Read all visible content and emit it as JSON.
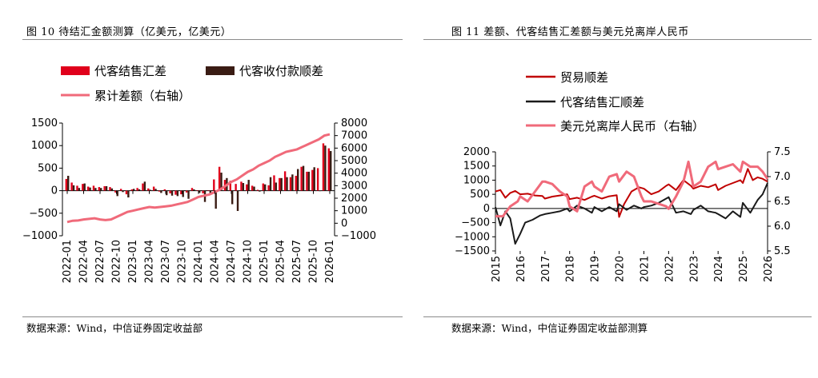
{
  "left": {
    "title": "图 10 待结汇金额测算（亿美元，亿美元）",
    "source": "数据来源：Wind，中信证券固定收益部"
  },
  "right": {
    "title": "图 11 差额、代客结售汇差额与美元兑离岸人民币",
    "source": "数据来源：Wind，中信证券固定收益部测算"
  },
  "chart_data": [
    {
      "type": "bar",
      "title": "",
      "x_labels": [
        "2022-01",
        "2022-04",
        "2022-07",
        "2022-10",
        "2023-01",
        "2023-04",
        "2023-07",
        "2023-10",
        "2024-01",
        "2024-04",
        "2024-07",
        "2024-10",
        "2025-01",
        "2025-04",
        "2025-07",
        "2025-10",
        "2026-01"
      ],
      "x": [
        "2022-01",
        "2022-02",
        "2022-03",
        "2022-04",
        "2022-05",
        "2022-06",
        "2022-07",
        "2022-08",
        "2022-09",
        "2022-10",
        "2022-11",
        "2022-12",
        "2023-01",
        "2023-02",
        "2023-03",
        "2023-04",
        "2023-05",
        "2023-06",
        "2023-07",
        "2023-08",
        "2023-09",
        "2023-10",
        "2023-11",
        "2023-12",
        "2024-01",
        "2024-02",
        "2024-03",
        "2024-04",
        "2024-05",
        "2024-06",
        "2024-07",
        "2024-08",
        "2024-09",
        "2024-10",
        "2024-11",
        "2024-12",
        "2025-01",
        "2025-02",
        "2025-03",
        "2025-04",
        "2025-05",
        "2025-06",
        "2025-07",
        "2025-08",
        "2025-09",
        "2025-10",
        "2025-11",
        "2025-12",
        "2026-01"
      ],
      "series": [
        {
          "name": "代客结售汇差",
          "axis": "left",
          "kind": "bar",
          "color": "#e0001b",
          "values": [
            260,
            180,
            110,
            150,
            90,
            110,
            80,
            100,
            80,
            -40,
            40,
            -80,
            30,
            60,
            160,
            50,
            90,
            -20,
            30,
            -60,
            -90,
            -80,
            -40,
            60,
            10,
            -60,
            10,
            250,
            530,
            240,
            220,
            150,
            200,
            140,
            110,
            20,
            160,
            120,
            340,
            280,
            430,
            300,
            330,
            530,
            420,
            460,
            500,
            1050,
            940
          ]
        },
        {
          "name": "代客收付款顺差",
          "axis": "left",
          "kind": "bar",
          "color": "#3a1c14",
          "values": [
            330,
            120,
            60,
            160,
            70,
            60,
            60,
            100,
            50,
            -120,
            -30,
            -150,
            40,
            30,
            200,
            20,
            40,
            -50,
            -100,
            -110,
            -120,
            -140,
            -180,
            30,
            -50,
            -250,
            -60,
            -400,
            400,
            280,
            -300,
            -450,
            170,
            240,
            90,
            -20,
            140,
            300,
            180,
            280,
            300,
            360,
            480,
            550,
            420,
            520,
            -10,
            1000,
            880
          ]
        },
        {
          "name": "累计差额（右轴）",
          "axis": "right",
          "kind": "line",
          "color": "#f06a7a",
          "values": [
            100,
            200,
            220,
            300,
            350,
            400,
            300,
            250,
            300,
            500,
            700,
            900,
            1000,
            1100,
            1200,
            1300,
            1250,
            1300,
            1350,
            1400,
            1500,
            1600,
            1700,
            1900,
            2100,
            2200,
            2300,
            2500,
            2700,
            3000,
            3300,
            3500,
            3800,
            4100,
            4300,
            4600,
            4800,
            5000,
            5300,
            5500,
            5700,
            5800,
            5900,
            6100,
            6300,
            6500,
            6700,
            7000,
            7100
          ]
        }
      ],
      "y_left_ticks": [
        "1500",
        "1000",
        "500",
        "0",
        "−500",
        "−1000"
      ],
      "y_right_ticks": [
        "8000",
        "7000",
        "6000",
        "5000",
        "4000",
        "3000",
        "2000",
        "1000",
        "0",
        "−1000"
      ],
      "y_left_range": [
        -1000,
        1500
      ],
      "y_right_range": [
        -1000,
        8000
      ],
      "legend": {
        "position": "top",
        "entries": [
          "代客结售汇差",
          "代客收付款顺差",
          "累计差额（右轴）"
        ]
      }
    },
    {
      "type": "line",
      "title": "",
      "x_labels": [
        "2015",
        "2016",
        "2017",
        "2018",
        "2019",
        "2020",
        "2021",
        "2022",
        "2023",
        "2024",
        "2025",
        "2026"
      ],
      "x_range": [
        2015,
        2026
      ],
      "series": [
        {
          "name": "贸易顺差",
          "axis": "left",
          "color": "#c00000",
          "points": [
            [
              2015,
              600
            ],
            [
              2015.2,
              650
            ],
            [
              2015.4,
              380
            ],
            [
              2015.6,
              550
            ],
            [
              2015.8,
              620
            ],
            [
              2016,
              500
            ],
            [
              2016.3,
              520
            ],
            [
              2016.6,
              460
            ],
            [
              2016.9,
              440
            ],
            [
              2017,
              350
            ],
            [
              2017.3,
              420
            ],
            [
              2017.6,
              460
            ],
            [
              2017.9,
              500
            ],
            [
              2018,
              330
            ],
            [
              2018.3,
              380
            ],
            [
              2018.6,
              300
            ],
            [
              2018.9,
              420
            ],
            [
              2019,
              450
            ],
            [
              2019.3,
              350
            ],
            [
              2019.6,
              430
            ],
            [
              2019.9,
              470
            ],
            [
              2020,
              -300
            ],
            [
              2020.2,
              150
            ],
            [
              2020.5,
              600
            ],
            [
              2020.8,
              750
            ],
            [
              2021,
              700
            ],
            [
              2021.3,
              500
            ],
            [
              2021.6,
              600
            ],
            [
              2021.9,
              800
            ],
            [
              2022,
              850
            ],
            [
              2022.3,
              650
            ],
            [
              2022.6,
              1000
            ],
            [
              2022.9,
              800
            ],
            [
              2023,
              700
            ],
            [
              2023.3,
              800
            ],
            [
              2023.6,
              750
            ],
            [
              2023.9,
              850
            ],
            [
              2024,
              650
            ],
            [
              2024.3,
              800
            ],
            [
              2024.6,
              900
            ],
            [
              2024.9,
              1000
            ],
            [
              2025,
              900
            ],
            [
              2025.2,
              1400
            ],
            [
              2025.4,
              1000
            ],
            [
              2025.6,
              1100
            ],
            [
              2025.8,
              1050
            ],
            [
              2026,
              950
            ]
          ]
        },
        {
          "name": "代客结售汇顺差",
          "axis": "left",
          "color": "#1a1a1a",
          "points": [
            [
              2015,
              50
            ],
            [
              2015.2,
              -600
            ],
            [
              2015.4,
              -100
            ],
            [
              2015.6,
              -350
            ],
            [
              2015.8,
              -1250
            ],
            [
              2016,
              -900
            ],
            [
              2016.2,
              -500
            ],
            [
              2016.5,
              -400
            ],
            [
              2016.8,
              -250
            ],
            [
              2017,
              -200
            ],
            [
              2017.3,
              -150
            ],
            [
              2017.6,
              -100
            ],
            [
              2017.9,
              0
            ],
            [
              2018,
              -100
            ],
            [
              2018.3,
              100
            ],
            [
              2018.6,
              0
            ],
            [
              2018.9,
              -150
            ],
            [
              2019,
              50
            ],
            [
              2019.3,
              -100
            ],
            [
              2019.6,
              50
            ],
            [
              2019.9,
              -100
            ],
            [
              2020,
              150
            ],
            [
              2020.3,
              -50
            ],
            [
              2020.6,
              100
            ],
            [
              2020.9,
              0
            ],
            [
              2021,
              50
            ],
            [
              2021.3,
              100
            ],
            [
              2021.6,
              200
            ],
            [
              2021.9,
              350
            ],
            [
              2022,
              400
            ],
            [
              2022.3,
              -150
            ],
            [
              2022.6,
              -100
            ],
            [
              2022.9,
              -200
            ],
            [
              2023,
              -50
            ],
            [
              2023.3,
              100
            ],
            [
              2023.6,
              -100
            ],
            [
              2023.9,
              -150
            ],
            [
              2024,
              -200
            ],
            [
              2024.3,
              -350
            ],
            [
              2024.6,
              -100
            ],
            [
              2024.9,
              -300
            ],
            [
              2025,
              200
            ],
            [
              2025.3,
              -150
            ],
            [
              2025.6,
              300
            ],
            [
              2025.8,
              500
            ],
            [
              2026,
              900
            ]
          ]
        },
        {
          "name": "美元兑离岸人民币（右轴）",
          "axis": "right",
          "color": "#f06a7a",
          "points": [
            [
              2015,
              6.2
            ],
            [
              2015.3,
              6.2
            ],
            [
              2015.6,
              6.4
            ],
            [
              2015.9,
              6.5
            ],
            [
              2016,
              6.6
            ],
            [
              2016.3,
              6.5
            ],
            [
              2016.6,
              6.7
            ],
            [
              2016.9,
              6.9
            ],
            [
              2017,
              6.9
            ],
            [
              2017.3,
              6.85
            ],
            [
              2017.6,
              6.7
            ],
            [
              2017.9,
              6.6
            ],
            [
              2018,
              6.4
            ],
            [
              2018.3,
              6.3
            ],
            [
              2018.6,
              6.8
            ],
            [
              2018.9,
              6.9
            ],
            [
              2019,
              6.8
            ],
            [
              2019.3,
              6.7
            ],
            [
              2019.6,
              7.0
            ],
            [
              2019.9,
              7.05
            ],
            [
              2020,
              6.9
            ],
            [
              2020.3,
              7.1
            ],
            [
              2020.6,
              7.0
            ],
            [
              2020.9,
              6.6
            ],
            [
              2021,
              6.5
            ],
            [
              2021.3,
              6.5
            ],
            [
              2021.6,
              6.45
            ],
            [
              2021.9,
              6.4
            ],
            [
              2022,
              6.35
            ],
            [
              2022.3,
              6.6
            ],
            [
              2022.6,
              6.9
            ],
            [
              2022.8,
              7.3
            ],
            [
              2023,
              6.8
            ],
            [
              2023.3,
              6.9
            ],
            [
              2023.6,
              7.2
            ],
            [
              2023.9,
              7.3
            ],
            [
              2024,
              7.15
            ],
            [
              2024.3,
              7.2
            ],
            [
              2024.6,
              7.25
            ],
            [
              2024.9,
              7.1
            ],
            [
              2025,
              7.3
            ],
            [
              2025.3,
              7.2
            ],
            [
              2025.6,
              7.2
            ],
            [
              2025.8,
              7.1
            ],
            [
              2026,
              6.95
            ]
          ]
        }
      ],
      "y_left_ticks": [
        "2000",
        "1500",
        "1000",
        "500",
        "0",
        "−500",
        "−1000",
        "−1500"
      ],
      "y_right_ticks": [
        "7.5",
        "7.0",
        "6.5",
        "6.0",
        "5.5"
      ],
      "y_left_range": [
        -1500,
        2000
      ],
      "y_right_range": [
        5.5,
        7.5
      ],
      "legend": {
        "position": "top",
        "entries": [
          "贸易顺差",
          "代客结售汇顺差",
          "美元兑离岸人民币（右轴）"
        ]
      }
    }
  ]
}
